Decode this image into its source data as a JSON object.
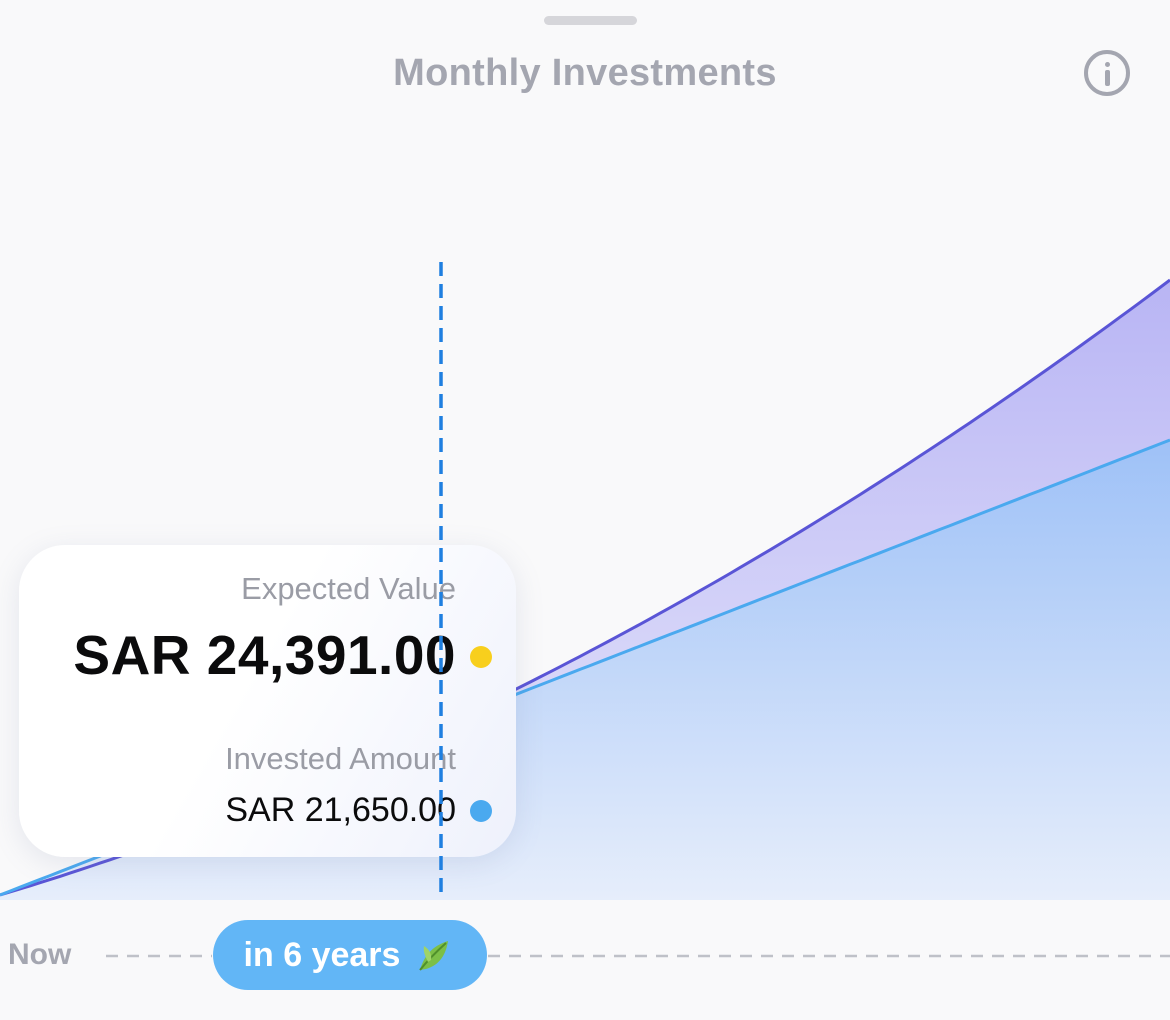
{
  "header": {
    "title": "Monthly Investments",
    "info_icon": "info-icon"
  },
  "tooltip": {
    "expected_label": "Expected Value",
    "expected_value": "SAR 24,391.00",
    "invested_label": "Invested Amount",
    "invested_value": "SAR 21,650.00"
  },
  "timeline": {
    "start_label": "Now",
    "selected_label": "in 6 years",
    "selected_icon": "leaf-icon"
  },
  "colors": {
    "expected_line": "#5a55d6",
    "expected_dot": "#f8cf1d",
    "invested_line": "#4aa9ef",
    "invested_dot": "#4aa9ef",
    "marker_line": "#1f7fe0",
    "pill": "#62b6f6"
  },
  "chart_data": {
    "type": "area",
    "title": "Monthly Investments",
    "x_start_label": "Now",
    "selected_point": {
      "label": "in 6 years",
      "expected_value": 24391,
      "invested_amount": 21650
    },
    "series": [
      {
        "name": "Expected Value",
        "color": "#5a55d6"
      },
      {
        "name": "Invested Amount",
        "color": "#4aa9ef"
      }
    ],
    "grid": false
  }
}
